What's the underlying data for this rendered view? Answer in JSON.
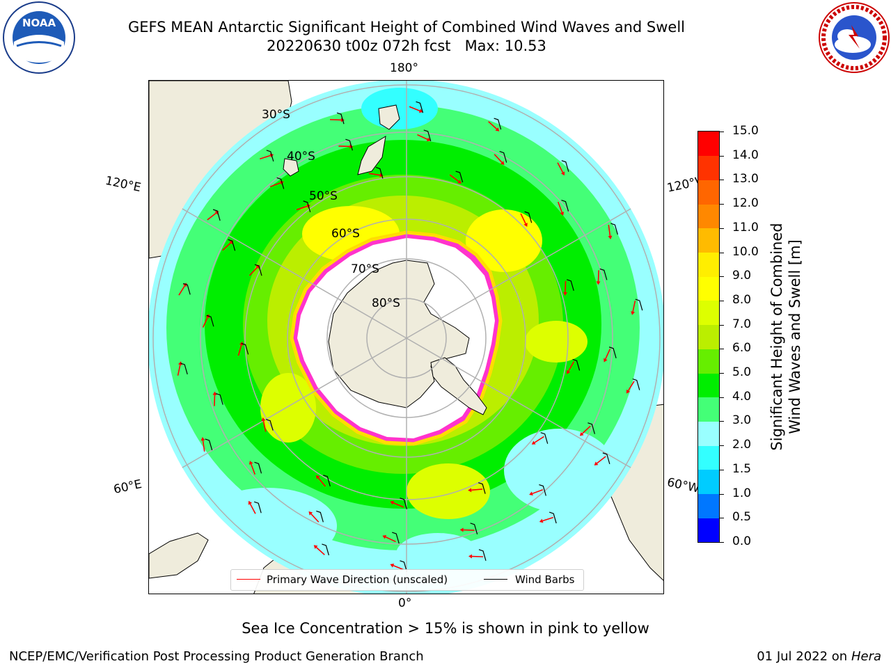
{
  "title": {
    "line1": "GEFS MEAN Antarctic Significant Height of Combined Wind Waves and Swell",
    "line2": "20220630 t00z 072h fcst   Max: 10.53"
  },
  "logos": {
    "left": "noaa-logo",
    "left_text": "NOAA",
    "right": "nws-logo"
  },
  "map": {
    "projection": "south-polar-stereographic",
    "longitude_labels": {
      "top": "180°",
      "bottom": "0°",
      "upper_left": "120°E",
      "upper_right": "120°W",
      "lower_left": "60°E",
      "lower_right": "60°W"
    },
    "latitude_labels": [
      "30°S",
      "40°S",
      "50°S",
      "60°S",
      "70°S",
      "80°S"
    ],
    "colors": {
      "land": "#efecdc",
      "ice": "#ffffff",
      "ice_edge": "#ff33cc",
      "grid": "#b0b0b0",
      "arrow": "#ff0000",
      "barb": "#000000"
    }
  },
  "legend": {
    "items": [
      {
        "label": "Primary Wave Direction (unscaled)",
        "color": "#ff0000"
      },
      {
        "label": "Wind Barbs",
        "color": "#000000"
      }
    ]
  },
  "colorbar": {
    "title_line1": "Significant Height of Combined",
    "title_line2": "Wind Waves and Swell [m]",
    "ticks": [
      "0.0",
      "0.5",
      "1.0",
      "1.5",
      "2.0",
      "3.0",
      "4.0",
      "5.0",
      "6.0",
      "7.0",
      "8.0",
      "9.0",
      "10.0",
      "11.0",
      "12.0",
      "13.0",
      "14.0",
      "15.0"
    ],
    "colors": [
      "#0000ff",
      "#0077ff",
      "#00ccff",
      "#33ffff",
      "#99ffff",
      "#44ff77",
      "#00ee00",
      "#66ee00",
      "#bbee00",
      "#ddff00",
      "#ffff00",
      "#ffee00",
      "#ffbb00",
      "#ff8800",
      "#ff6600",
      "#ff3300",
      "#ff0000"
    ]
  },
  "sea_ice_note": "Sea Ice Concentration > 15% is shown in pink to yellow",
  "footer": {
    "left": "NCEP/EMC/Verification Post Processing Product Generation Branch",
    "right_prefix": "01 Jul 2022 on ",
    "right_machine": "Hera"
  }
}
